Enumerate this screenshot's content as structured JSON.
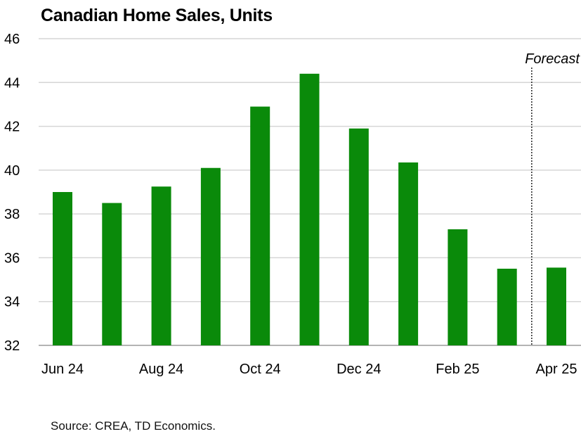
{
  "chart_data": {
    "type": "bar",
    "title": "Canadian Home Sales, Units",
    "categories": [
      "Jun 24",
      "Jul 24",
      "Aug 24",
      "Sep 24",
      "Oct 24",
      "Nov 24",
      "Dec 24",
      "Jan 25",
      "Feb 25",
      "Mar 25",
      "Apr 25"
    ],
    "x_tick_labels": [
      "Jun 24",
      "Aug 24",
      "Oct 24",
      "Dec 24",
      "Feb 25",
      "Apr 25"
    ],
    "values": [
      39.0,
      38.5,
      39.25,
      40.1,
      42.9,
      44.4,
      41.9,
      40.35,
      37.3,
      35.5,
      35.55
    ],
    "ylim": [
      32,
      46
    ],
    "yticks": [
      32,
      34,
      36,
      38,
      40,
      42,
      44,
      46
    ],
    "grid": "horizontal",
    "bar_color": "#0a8a0a",
    "forecast_label": "Forecast",
    "forecast_from": "Apr 25",
    "source": "Source: CREA, TD Economics."
  }
}
